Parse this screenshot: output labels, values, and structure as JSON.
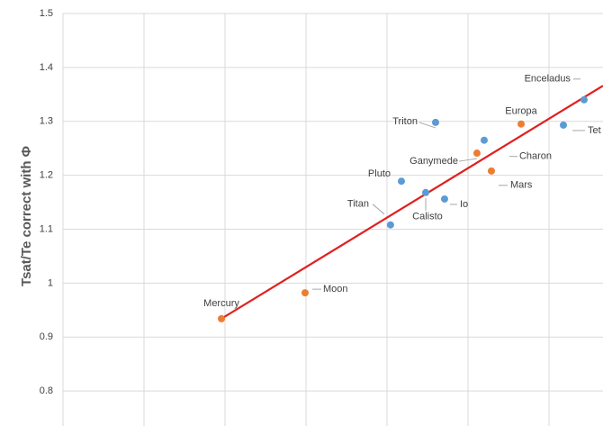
{
  "chart_data": {
    "type": "scatter",
    "y_label": "Tsat/Te correct with Φ",
    "ylim": [
      0.735,
      1.5
    ],
    "yticks": [
      0.8,
      0.9,
      1,
      1.1,
      1.2,
      1.3,
      1.4,
      1.5
    ],
    "xlim": [
      0,
      6.667
    ],
    "xticks": [
      1,
      2,
      3,
      4,
      5,
      6
    ],
    "grid": true,
    "points": [
      {
        "label": "Mercury",
        "x": 1.956,
        "y": 0.934,
        "color": "#ed7d31"
      },
      {
        "label": "Moon",
        "x": 2.989,
        "y": 0.982,
        "color": "#ed7d31"
      },
      {
        "label": "Titan",
        "x": 4.044,
        "y": 1.108,
        "color": "#5b9bd5"
      },
      {
        "label": "Pluto",
        "x": 4.178,
        "y": 1.189,
        "color": "#5b9bd5"
      },
      {
        "label": "Calisto",
        "x": 4.478,
        "y": 1.168,
        "color": "#5b9bd5"
      },
      {
        "label": "Io",
        "x": 4.711,
        "y": 1.156,
        "color": "#5b9bd5"
      },
      {
        "label": "Triton",
        "x": 4.6,
        "y": 1.298,
        "color": "#5b9bd5"
      },
      {
        "label": "Ganymede",
        "x": 5.111,
        "y": 1.241,
        "color": "#ed7d31"
      },
      {
        "label": "Charon",
        "x": 5.2,
        "y": 1.265,
        "color": "#5b9bd5"
      },
      {
        "label": "Mars",
        "x": 5.289,
        "y": 1.208,
        "color": "#ed7d31"
      },
      {
        "label": "Europa",
        "x": 5.656,
        "y": 1.295,
        "color": "#ed7d31"
      },
      {
        "label": "Enceladus",
        "x": 6.433,
        "y": 1.34,
        "color": "#5b9bd5"
      },
      {
        "label": "Tet",
        "x": 6.178,
        "y": 1.293,
        "color": "#5b9bd5"
      }
    ],
    "trendline": {
      "x": [
        1.956,
        6.667
      ],
      "y": [
        0.934,
        1.366
      ],
      "color": "#e02020"
    }
  }
}
